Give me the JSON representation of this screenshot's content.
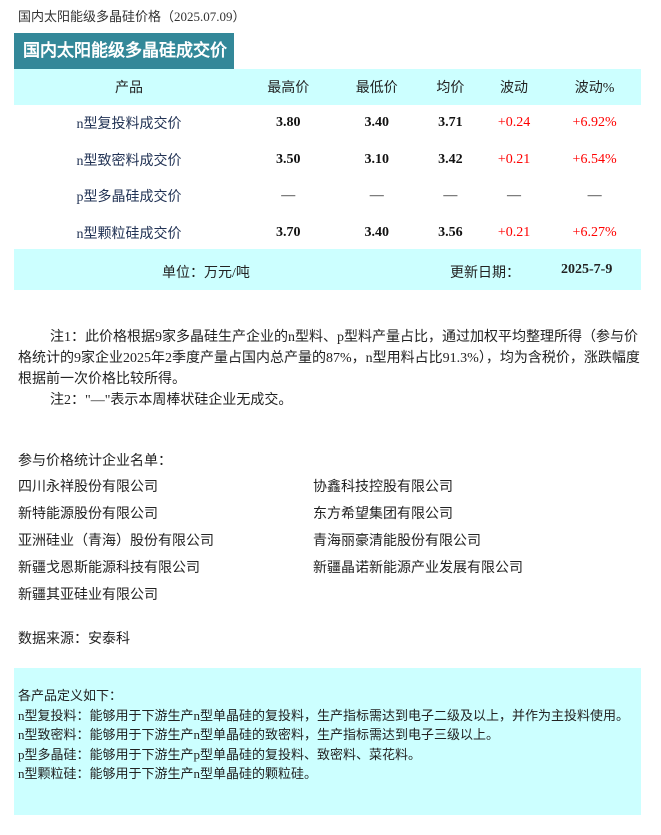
{
  "title": "国内太阳能级多晶硅价格（2025.07.09）",
  "tab_title": "国内太阳能级多晶硅成交价",
  "table": {
    "headers": [
      "产品",
      "最高价",
      "最低价",
      "均价",
      "波动",
      "波动%"
    ],
    "rows": [
      {
        "product": "n型复投料成交价",
        "high": "3.80",
        "low": "3.40",
        "avg": "3.71",
        "change": "+0.24",
        "change_pct": "+6.92%"
      },
      {
        "product": "n型致密料成交价",
        "high": "3.50",
        "low": "3.10",
        "avg": "3.42",
        "change": "+0.21",
        "change_pct": "+6.54%"
      },
      {
        "product": "p型多晶硅成交价",
        "high": "—",
        "low": "—",
        "avg": "—",
        "change": "—",
        "change_pct": "—"
      },
      {
        "product": "n型颗粒硅成交价",
        "high": "3.70",
        "low": "3.40",
        "avg": "3.56",
        "change": "+0.21",
        "change_pct": "+6.27%"
      }
    ]
  },
  "footer": {
    "unit": "单位：万元/吨",
    "update_label": "更新日期：",
    "update_date": "2025-7-9"
  },
  "notes": {
    "note1": "注1：此价格根据9家多晶硅生产企业的n型料、p型料产量占比，通过加权平均整理所得（参与价格统计的9家企业2025年2季度产量占国内总产量的87%，n型用料占比91.3%），均为含税价，涨跌幅度根据前一次价格比较所得。",
    "note2": "注2：\"—\"表示本周棒状硅企业无成交。"
  },
  "companies_title": "参与价格统计企业名单：",
  "companies": [
    "四川永祥股份有限公司",
    "协鑫科技控股有限公司",
    "新特能源股份有限公司",
    "东方希望集团有限公司",
    "亚洲硅业（青海）股份有限公司",
    "青海丽豪清能股份有限公司",
    "新疆戈恩斯能源科技有限公司",
    "新疆晶诺新能源产业发展有限公司",
    "新疆其亚硅业有限公司"
  ],
  "source": "数据来源：安泰科",
  "definitions": [
    "各产品定义如下：",
    "n型复投料：能够用于下游生产n型单晶硅的复投料，生产指标需达到电子二级及以上，并作为主投料使用。",
    "n型致密料：能够用于下游生产n型单晶硅的致密料，生产指标需达到电子三级以上。",
    "p型多晶硅：能够用于下游生产p型单晶硅的复投料、致密料、菜花料。",
    "n型颗粒硅：能够用于下游生产n型单晶硅的颗粒硅。"
  ],
  "colors": {
    "header_bg": "#338899",
    "band_bg": "#ccffff",
    "up": "#ff0000"
  }
}
